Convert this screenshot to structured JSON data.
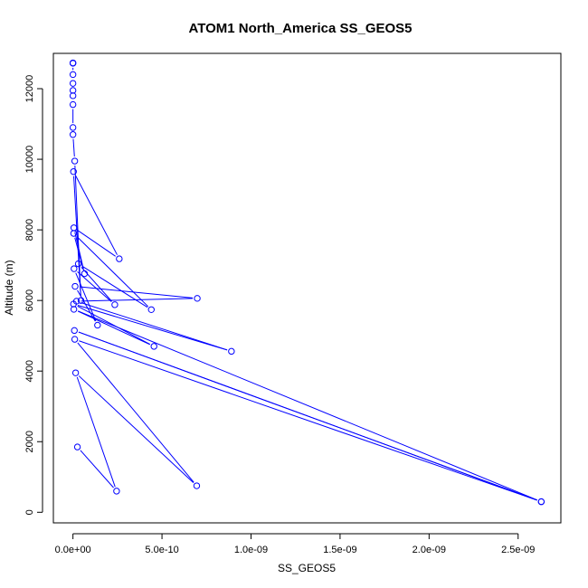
{
  "chart_data": {
    "type": "line",
    "title": "ATOM1 North_America SS_GEOS5",
    "xlabel": "SS_GEOS5",
    "ylabel": "Altitude (m)",
    "xlim": [
      -1.1e-10,
      2.74e-09
    ],
    "ylim": [
      -300,
      13000
    ],
    "x_ticks": [
      0,
      5e-10,
      1e-09,
      1.5e-09,
      2e-09,
      2.5e-09
    ],
    "x_tick_labels": [
      "0.0e+00",
      "5.0e-10",
      "1.0e-09",
      "1.5e-09",
      "2.0e-09",
      "2.5e-09"
    ],
    "y_ticks": [
      0,
      2000,
      4000,
      6000,
      8000,
      10000,
      12000
    ],
    "y_tick_labels": [
      "0",
      "2000",
      "4000",
      "6000",
      "8000",
      "10000",
      "12000"
    ],
    "grid": false,
    "series": [
      {
        "color": "#0000ff",
        "marker": "open-circle",
        "points": [
          {
            "x": 2.5e-11,
            "y": 1850
          },
          {
            "x": 2.45e-10,
            "y": 600
          },
          {
            "x": 1.5e-11,
            "y": 3950
          },
          {
            "x": 6.95e-10,
            "y": 750
          },
          {
            "x": 1e-11,
            "y": 4900
          },
          {
            "x": 2.63e-09,
            "y": 300
          },
          {
            "x": 8e-12,
            "y": 5150
          },
          {
            "x": 2.63e-09,
            "y": 300
          },
          {
            "x": 5e-12,
            "y": 5750
          },
          {
            "x": 4.55e-10,
            "y": 4700
          },
          {
            "x": 3e-12,
            "y": 5900
          },
          {
            "x": 8.9e-10,
            "y": 4560
          },
          {
            "x": 2e-11,
            "y": 5980
          },
          {
            "x": 6.98e-10,
            "y": 6060
          },
          {
            "x": 1.2e-11,
            "y": 6400
          },
          {
            "x": 1.38e-10,
            "y": 5300
          },
          {
            "x": 6e-12,
            "y": 6900
          },
          {
            "x": 2.35e-10,
            "y": 5880
          },
          {
            "x": 3e-11,
            "y": 7040
          },
          {
            "x": 4.4e-10,
            "y": 5740
          },
          {
            "x": 4e-12,
            "y": 7900
          },
          {
            "x": 6.5e-11,
            "y": 6760
          },
          {
            "x": 5e-12,
            "y": 8060
          },
          {
            "x": 2.6e-10,
            "y": 7180
          },
          {
            "x": 3e-12,
            "y": 9650
          },
          {
            "x": 4.5e-11,
            "y": 6000
          },
          {
            "x": 1e-11,
            "y": 9950
          },
          {
            "x": 0,
            "y": 10700
          },
          {
            "x": 0,
            "y": 10900
          },
          {
            "x": 0,
            "y": 11550
          },
          {
            "x": 0,
            "y": 11800
          },
          {
            "x": 0,
            "y": 11950
          },
          {
            "x": 0,
            "y": 12150
          },
          {
            "x": 0,
            "y": 12400
          },
          {
            "x": 0,
            "y": 12720
          },
          {
            "x": 0,
            "y": 12730
          }
        ]
      }
    ]
  }
}
